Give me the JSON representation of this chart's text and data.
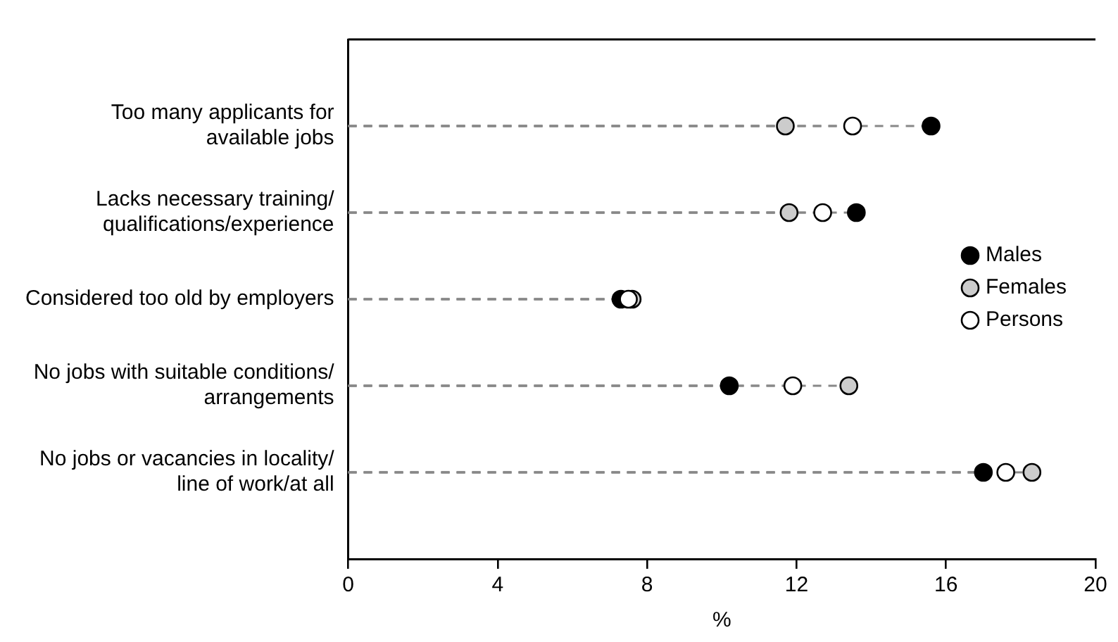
{
  "chart_data": {
    "type": "lollipop",
    "orientation": "horizontal",
    "xlabel": "%",
    "categories": [
      "Too many applicants for\navailable jobs",
      "Lacks necessary training/\nqualifications/experience",
      "Considered too old by employers",
      "No jobs with suitable conditions/\narrangements",
      "No jobs or vacancies in locality/\nline of work/at all"
    ],
    "series": [
      {
        "name": "Males",
        "color": "#000000",
        "values": [
          15.6,
          13.6,
          7.3,
          10.2,
          17.0
        ]
      },
      {
        "name": "Females",
        "color": "#cccccc",
        "values": [
          11.7,
          11.8,
          7.6,
          13.4,
          18.3
        ]
      },
      {
        "name": "Persons",
        "color": "#ffffff",
        "values": [
          13.5,
          12.7,
          7.5,
          11.9,
          17.6
        ]
      }
    ],
    "xlim": [
      0,
      20
    ],
    "xticks": [
      0,
      4,
      8,
      12,
      16,
      20
    ],
    "legend": "right",
    "marker": "circle",
    "line_style": "dashed",
    "grid": false
  }
}
